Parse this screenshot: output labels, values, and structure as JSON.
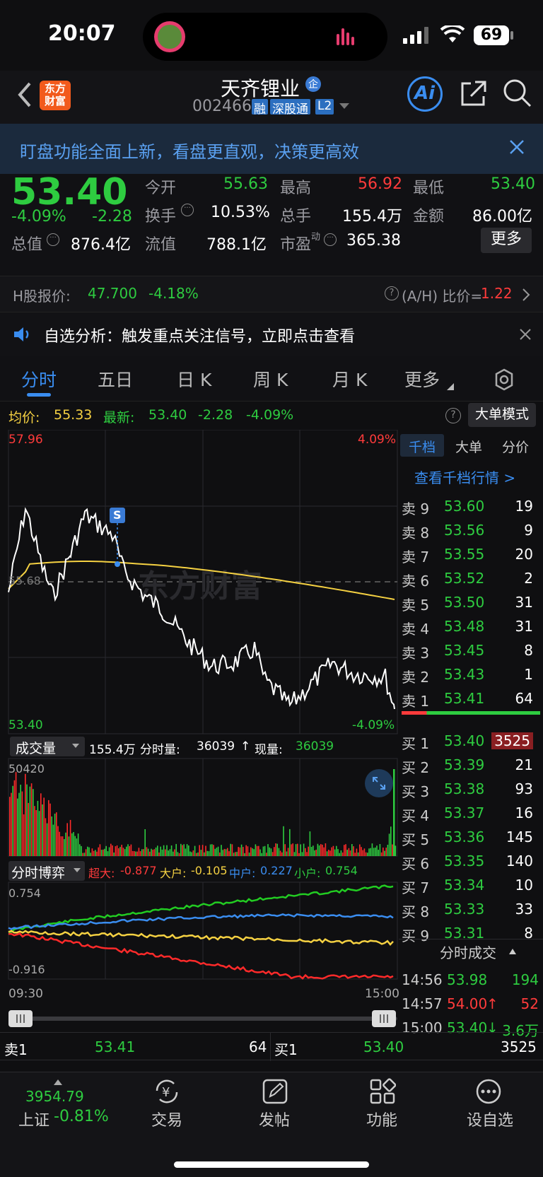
{
  "status_bar": {
    "time": "20:07",
    "battery": "69"
  },
  "header": {
    "logo": "东方\n财富",
    "stock_name": "天齐锂业",
    "stock_code": "002466",
    "tags": [
      "融",
      "深股通",
      "L2"
    ],
    "ai_label": "Ai"
  },
  "banner": {
    "text": "盯盘功能全面上新，看盘更直观，决策更高效"
  },
  "quote": {
    "price": "53.40",
    "change_pct": "-4.09%",
    "change": "-2.28",
    "total_value_label": "总值",
    "total_value": "876.4亿",
    "open_label": "今开",
    "open": "55.63",
    "high_label": "最高",
    "high": "56.92",
    "low_label": "最低",
    "low": "53.40",
    "turnover_label": "换手",
    "turnover": "10.53%",
    "volume_label": "总手",
    "volume": "155.4万",
    "amount_label": "金额",
    "amount": "86.00亿",
    "float_label": "流值",
    "float_value": "788.1亿",
    "pe_label": "市盈",
    "pe_sup": "动",
    "pe": "365.38",
    "more_button": "更多"
  },
  "h_share": {
    "label": "H股报价:",
    "price": "47.700",
    "pct": "-4.18%",
    "ratio_label": "(A/H) 比价=",
    "ratio": "1.22"
  },
  "notice": {
    "text": "自选分析：触发重点关注信号，立即点击查看"
  },
  "tabs": [
    {
      "label": "分时",
      "active": true
    },
    {
      "label": "五日",
      "active": false
    },
    {
      "label": "日 K",
      "active": false
    },
    {
      "label": "周 K",
      "active": false
    },
    {
      "label": "月 K",
      "active": false
    },
    {
      "label": "更多",
      "active": false
    }
  ],
  "chart_bar": {
    "avg_label": "均价:",
    "avg": "55.33",
    "last_label": "最新:",
    "last": "53.40",
    "chg": "-2.28",
    "pct": "-4.09%",
    "big_order_mode": "大单模式"
  },
  "chart_labels": {
    "top_price": "57.96",
    "top_pct": "4.09%",
    "bottom_price": "53.40",
    "bottom_pct": "-4.09%",
    "mid_price": "55.68",
    "s_marker": "S",
    "watermark": "东方财富"
  },
  "volume_bar": {
    "selector": "成交量",
    "total": "155.4万",
    "minute_label": "分时量:",
    "minute_value": "36039",
    "current_label": "现量:",
    "current_value": "36039",
    "max": "50420"
  },
  "game_bar": {
    "selector": "分时博弈",
    "super_label": "超大:",
    "super_value": "-0.877",
    "large_label": "大户:",
    "large_value": "-0.105",
    "mid_label": "中户:",
    "mid_value": "0.227",
    "small_label": "小户:",
    "small_value": "0.754",
    "top": "0.754",
    "bottom": "-0.916"
  },
  "time_axis": {
    "start": "09:30",
    "end": "15:00"
  },
  "book_tabs": [
    "千档",
    "大单",
    "分价"
  ],
  "book_link": "查看千档行情 >",
  "asks": [
    {
      "label": "卖 9",
      "price": "53.60",
      "vol": "19"
    },
    {
      "label": "卖 8",
      "price": "53.56",
      "vol": "9"
    },
    {
      "label": "卖 7",
      "price": "53.55",
      "vol": "20"
    },
    {
      "label": "卖 6",
      "price": "53.52",
      "vol": "2"
    },
    {
      "label": "卖 5",
      "price": "53.50",
      "vol": "31"
    },
    {
      "label": "卖 4",
      "price": "53.48",
      "vol": "31"
    },
    {
      "label": "卖 3",
      "price": "53.45",
      "vol": "8"
    },
    {
      "label": "卖 2",
      "price": "53.43",
      "vol": "1"
    },
    {
      "label": "卖 1",
      "price": "53.41",
      "vol": "64"
    }
  ],
  "bids": [
    {
      "label": "买 1",
      "price": "53.40",
      "vol": "3525"
    },
    {
      "label": "买 2",
      "price": "53.39",
      "vol": "21"
    },
    {
      "label": "买 3",
      "price": "53.38",
      "vol": "93"
    },
    {
      "label": "买 4",
      "price": "53.37",
      "vol": "16"
    },
    {
      "label": "买 5",
      "price": "53.36",
      "vol": "145"
    },
    {
      "label": "买 6",
      "price": "53.35",
      "vol": "140"
    },
    {
      "label": "买 7",
      "price": "53.34",
      "vol": "10"
    },
    {
      "label": "买 8",
      "price": "53.33",
      "vol": "33"
    },
    {
      "label": "买 9",
      "price": "53.31",
      "vol": "8"
    }
  ],
  "trades_title": "分时成交",
  "trades": [
    {
      "time": "14:56",
      "price": "53.98",
      "arrow": "",
      "vol": "194"
    },
    {
      "time": "14:57",
      "price": "54.00",
      "arrow": "↑",
      "vol": "52"
    },
    {
      "time": "15:00",
      "price": "53.40",
      "arrow": "↓",
      "vol": "3.6万"
    }
  ],
  "bottom_row": {
    "sell_label": "卖1",
    "sell_price": "53.41",
    "sell_vol": "64",
    "buy_label": "买1",
    "buy_price": "53.40",
    "buy_vol": "3525"
  },
  "nav": {
    "index_value": "3954.79",
    "index_name": "上证",
    "index_pct": "-0.81%",
    "items": [
      "交易",
      "发帖",
      "功能",
      "设自选"
    ]
  },
  "colors": {
    "up": "#ff3b3b",
    "down": "#2ecc40",
    "avg": "#f5d142",
    "accent": "#3a8df0"
  }
}
